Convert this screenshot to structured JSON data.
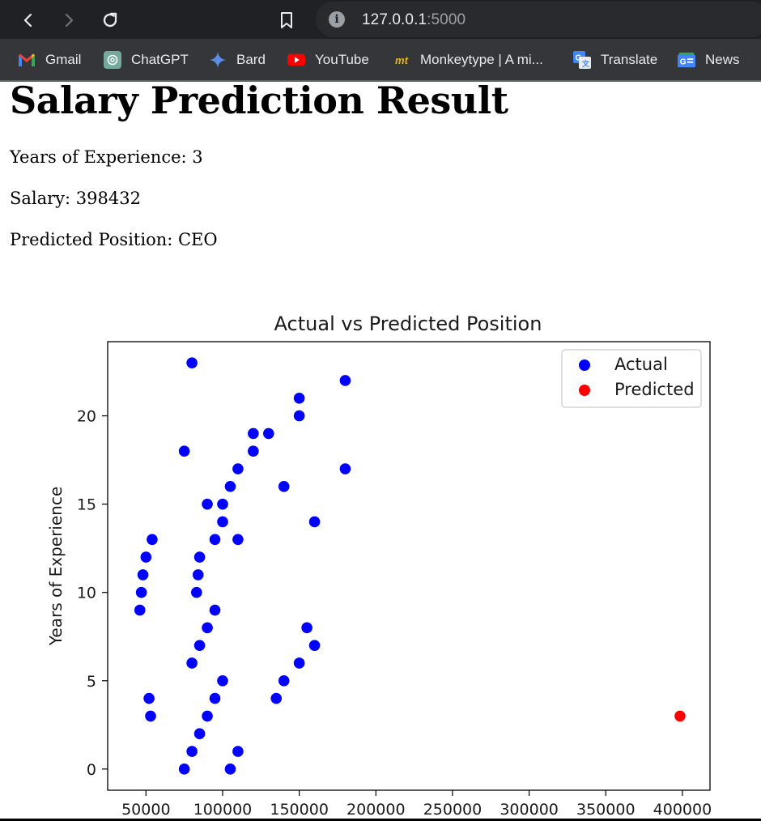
{
  "browser": {
    "url_host": "127.0.0.1",
    "url_port": ":5000",
    "bookmarks": [
      {
        "label": "Gmail",
        "icon": "gmail-icon"
      },
      {
        "label": "ChatGPT",
        "icon": "chatgpt-icon"
      },
      {
        "label": "Bard",
        "icon": "bard-icon"
      },
      {
        "label": "YouTube",
        "icon": "youtube-icon"
      },
      {
        "label": "Monkeytype | A mi...",
        "icon": "monkeytype-icon"
      },
      {
        "label": "Translate",
        "icon": "translate-icon"
      },
      {
        "label": "News",
        "icon": "news-icon"
      }
    ]
  },
  "page": {
    "title": "Salary Prediction Result",
    "experience_line": "Years of Experience: 3",
    "salary_line": "Salary: 398432",
    "position_line": "Predicted Position: CEO"
  },
  "chart_data": {
    "type": "scatter",
    "title": "Actual vs Predicted Position",
    "xlabel": "",
    "ylabel": "Years of Experience",
    "xlim": [
      25000,
      418000
    ],
    "ylim": [
      -1.2,
      24.2
    ],
    "xticks": [
      50000,
      100000,
      150000,
      200000,
      250000,
      300000,
      350000,
      400000
    ],
    "yticks": [
      0,
      5,
      10,
      15,
      20
    ],
    "legend": "top-right",
    "series": [
      {
        "name": "Actual",
        "color": "#0000ff",
        "points": [
          [
            80000,
            23
          ],
          [
            180000,
            22
          ],
          [
            150000,
            21
          ],
          [
            150000,
            20
          ],
          [
            120000,
            19
          ],
          [
            130000,
            19
          ],
          [
            75000,
            18
          ],
          [
            120000,
            18
          ],
          [
            110000,
            17
          ],
          [
            180000,
            17
          ],
          [
            105000,
            16
          ],
          [
            140000,
            16
          ],
          [
            90000,
            15
          ],
          [
            100000,
            15
          ],
          [
            100000,
            14
          ],
          [
            160000,
            14
          ],
          [
            54000,
            13
          ],
          [
            95000,
            13
          ],
          [
            110000,
            13
          ],
          [
            50000,
            12
          ],
          [
            85000,
            12
          ],
          [
            48000,
            11
          ],
          [
            84000,
            11
          ],
          [
            47000,
            10
          ],
          [
            83000,
            10
          ],
          [
            46000,
            9
          ],
          [
            95000,
            9
          ],
          [
            90000,
            8
          ],
          [
            155000,
            8
          ],
          [
            85000,
            7
          ],
          [
            160000,
            7
          ],
          [
            80000,
            6
          ],
          [
            150000,
            6
          ],
          [
            100000,
            5
          ],
          [
            140000,
            5
          ],
          [
            52000,
            4
          ],
          [
            95000,
            4
          ],
          [
            135000,
            4
          ],
          [
            53000,
            3
          ],
          [
            90000,
            3
          ],
          [
            85000,
            2
          ],
          [
            80000,
            1
          ],
          [
            110000,
            1
          ],
          [
            75000,
            0
          ],
          [
            105000,
            0
          ]
        ]
      },
      {
        "name": "Predicted",
        "color": "#ff0000",
        "points": [
          [
            398432,
            3
          ]
        ]
      }
    ]
  }
}
